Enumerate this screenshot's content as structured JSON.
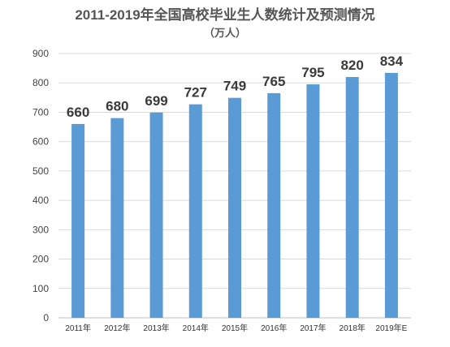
{
  "chart_data": {
    "type": "bar",
    "title": "2011-2019年全国高校毕业生人数统计及预测情况",
    "subtitle": "（万人）",
    "categories": [
      "2011年",
      "2012年",
      "2013年",
      "2014年",
      "2015年",
      "2016年",
      "2017年",
      "2018年",
      "2019年E"
    ],
    "values": [
      660,
      680,
      699,
      727,
      749,
      765,
      795,
      820,
      834
    ],
    "data_labels": [
      "660",
      "680",
      "699",
      "727",
      "749",
      "765",
      "795",
      "820",
      "834"
    ],
    "y_ticks": [
      "0",
      "100",
      "200",
      "300",
      "400",
      "500",
      "600",
      "700",
      "800",
      "900"
    ],
    "ylim": [
      0,
      900
    ],
    "grid": true,
    "legend": "none",
    "bar_color": "#5b9bd5"
  }
}
